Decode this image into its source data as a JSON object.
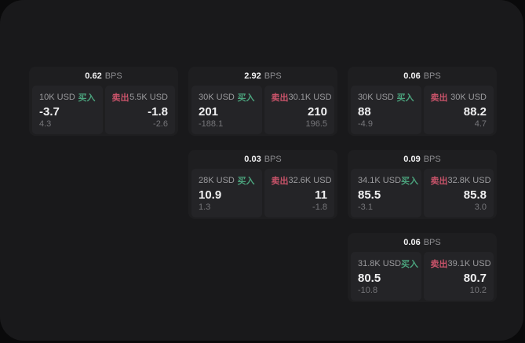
{
  "labels": {
    "bps_unit": "BPS",
    "buy": "买入",
    "sell": "卖出"
  },
  "colors": {
    "buy": "#4ba37d",
    "sell": "#c9536a",
    "panel_bg": "#19191b",
    "card_bg": "#1e1e20",
    "subcard_bg": "#242427"
  },
  "cards": [
    {
      "bps": "0.62",
      "buy": {
        "amount": "10K USD",
        "price": "-3.7",
        "change": "4.3"
      },
      "sell": {
        "amount": "5.5K USD",
        "price": "-1.8",
        "change": "-2.6"
      }
    },
    {
      "bps": "2.92",
      "buy": {
        "amount": "30K USD",
        "price": "201",
        "change": "-188.1"
      },
      "sell": {
        "amount": "30.1K USD",
        "price": "210",
        "change": "196.5"
      }
    },
    {
      "bps": "0.06",
      "buy": {
        "amount": "30K USD",
        "price": "88",
        "change": "-4.9"
      },
      "sell": {
        "amount": "30K USD",
        "price": "88.2",
        "change": "4.7"
      }
    },
    {
      "bps": "0.03",
      "buy": {
        "amount": "28K USD",
        "price": "10.9",
        "change": "1.3"
      },
      "sell": {
        "amount": "32.6K USD",
        "price": "11",
        "change": "-1.8"
      }
    },
    {
      "bps": "0.09",
      "buy": {
        "amount": "34.1K USD",
        "price": "85.5",
        "change": "-3.1"
      },
      "sell": {
        "amount": "32.8K USD",
        "price": "85.8",
        "change": "3.0"
      }
    },
    {
      "bps": "0.06",
      "buy": {
        "amount": "31.8K USD",
        "price": "80.5",
        "change": "-10.8"
      },
      "sell": {
        "amount": "39.1K USD",
        "price": "80.7",
        "change": "10.2"
      }
    }
  ]
}
